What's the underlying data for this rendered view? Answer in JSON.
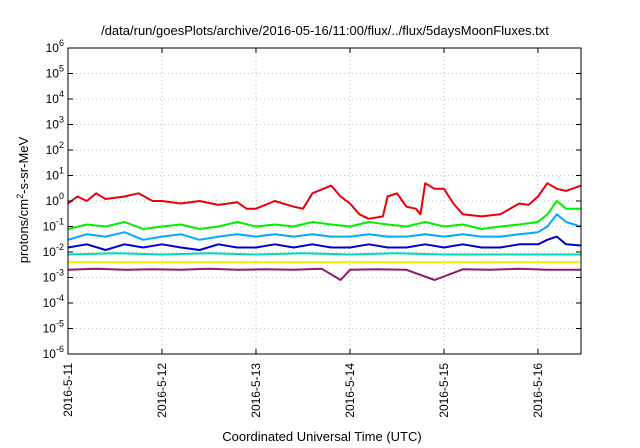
{
  "chart_data": {
    "type": "line",
    "title": "/data/run/goesPlots/archive/2016-05-16/11:00/flux/../flux/5daysMoonFluxes.txt",
    "xlabel": "Coordinated Universal Time (UTC)",
    "ylabel": "protons/cm²-s-sr-MeV",
    "yscale": "log",
    "ylim": [
      1e-06,
      1000000.0
    ],
    "xlim": [
      "2016-05-11",
      "2016-05-16 11:00"
    ],
    "grid": true,
    "legend": "none",
    "y_tick_labels": [
      {
        "base": "10",
        "exp": "-6"
      },
      {
        "base": "10",
        "exp": "-5"
      },
      {
        "base": "10",
        "exp": "-4"
      },
      {
        "base": "10",
        "exp": "-3"
      },
      {
        "base": "10",
        "exp": "-2"
      },
      {
        "base": "10",
        "exp": "-1"
      },
      {
        "base": "10",
        "exp": "0"
      },
      {
        "base": "10",
        "exp": "1"
      },
      {
        "base": "10",
        "exp": "2"
      },
      {
        "base": "10",
        "exp": "3"
      },
      {
        "base": "10",
        "exp": "4"
      },
      {
        "base": "10",
        "exp": "5"
      },
      {
        "base": "10",
        "exp": "6"
      }
    ],
    "x_tick_labels": [
      "2016-5-11",
      "2016-5-12",
      "2016-5-13",
      "2016-5-14",
      "2016-5-15",
      "2016-5-16"
    ],
    "series": [
      {
        "color": "#e8000b",
        "x": [
          0,
          0.1,
          0.2,
          0.3,
          0.4,
          0.6,
          0.75,
          0.9,
          1.0,
          1.2,
          1.4,
          1.6,
          1.8,
          1.9,
          2.0,
          2.2,
          2.4,
          2.5,
          2.6,
          2.8,
          2.9,
          3.0,
          3.1,
          3.2,
          3.35,
          3.4,
          3.5,
          3.6,
          3.7,
          3.75,
          3.8,
          3.9,
          4.0,
          4.1,
          4.2,
          4.4,
          4.6,
          4.8,
          4.9,
          5.0,
          5.1,
          5.2,
          5.3,
          5.458
        ],
        "values": [
          0.8,
          1.5,
          1.0,
          2.0,
          1.2,
          1.5,
          2.0,
          1.0,
          1.0,
          0.8,
          1.0,
          0.7,
          0.9,
          0.5,
          0.5,
          1.0,
          0.6,
          0.5,
          2.0,
          4.0,
          1.5,
          0.8,
          0.3,
          0.2,
          0.25,
          1.5,
          2.0,
          0.6,
          0.5,
          0.3,
          5.0,
          3.0,
          3.0,
          0.8,
          0.3,
          0.25,
          0.3,
          0.8,
          0.7,
          1.5,
          5.0,
          3.0,
          2.5,
          4.0
        ]
      },
      {
        "color": "#00f000",
        "x": [
          0,
          0.2,
          0.4,
          0.6,
          0.8,
          1.0,
          1.2,
          1.4,
          1.6,
          1.8,
          2.0,
          2.2,
          2.4,
          2.6,
          2.8,
          3.0,
          3.2,
          3.4,
          3.6,
          3.8,
          4.0,
          4.2,
          4.4,
          4.6,
          4.8,
          5.0,
          5.1,
          5.2,
          5.3,
          5.458
        ],
        "values": [
          0.08,
          0.12,
          0.1,
          0.15,
          0.08,
          0.1,
          0.12,
          0.08,
          0.1,
          0.15,
          0.1,
          0.12,
          0.1,
          0.15,
          0.12,
          0.1,
          0.15,
          0.12,
          0.1,
          0.15,
          0.1,
          0.12,
          0.08,
          0.1,
          0.12,
          0.15,
          0.3,
          1.0,
          0.5,
          0.5
        ]
      },
      {
        "color": "#00aaff",
        "x": [
          0,
          0.2,
          0.4,
          0.6,
          0.8,
          1.0,
          1.2,
          1.4,
          1.6,
          1.8,
          2.0,
          2.2,
          2.4,
          2.6,
          2.8,
          3.0,
          3.2,
          3.4,
          3.6,
          3.8,
          4.0,
          4.2,
          4.4,
          4.6,
          4.8,
          5.0,
          5.1,
          5.2,
          5.3,
          5.458
        ],
        "values": [
          0.03,
          0.05,
          0.04,
          0.06,
          0.03,
          0.04,
          0.05,
          0.03,
          0.04,
          0.05,
          0.04,
          0.05,
          0.04,
          0.05,
          0.04,
          0.04,
          0.05,
          0.04,
          0.04,
          0.05,
          0.04,
          0.05,
          0.04,
          0.04,
          0.05,
          0.06,
          0.1,
          0.3,
          0.15,
          0.1
        ]
      },
      {
        "color": "#0000cc",
        "x": [
          0,
          0.2,
          0.4,
          0.6,
          0.8,
          1.0,
          1.2,
          1.4,
          1.6,
          1.8,
          2.0,
          2.2,
          2.4,
          2.6,
          2.8,
          3.0,
          3.2,
          3.4,
          3.6,
          3.8,
          4.0,
          4.2,
          4.4,
          4.6,
          4.8,
          5.0,
          5.1,
          5.2,
          5.3,
          5.458
        ],
        "values": [
          0.015,
          0.02,
          0.012,
          0.02,
          0.015,
          0.02,
          0.015,
          0.012,
          0.02,
          0.015,
          0.015,
          0.02,
          0.015,
          0.02,
          0.015,
          0.015,
          0.02,
          0.015,
          0.015,
          0.02,
          0.015,
          0.02,
          0.015,
          0.015,
          0.02,
          0.02,
          0.03,
          0.04,
          0.02,
          0.018
        ]
      },
      {
        "color": "#00d8b8",
        "x": [
          0,
          0.5,
          1.0,
          1.5,
          2.0,
          2.5,
          3.0,
          3.5,
          4.0,
          4.5,
          5.0,
          5.458
        ],
        "values": [
          0.008,
          0.009,
          0.008,
          0.009,
          0.008,
          0.009,
          0.008,
          0.009,
          0.008,
          0.008,
          0.008,
          0.008
        ]
      },
      {
        "color": "#f2f200",
        "x": [
          0,
          1.0,
          2.0,
          3.0,
          4.0,
          5.0,
          5.458
        ],
        "values": [
          0.004,
          0.004,
          0.004,
          0.004,
          0.004,
          0.004,
          0.004
        ]
      },
      {
        "color": "#8b1a6b",
        "x": [
          0,
          0.3,
          0.6,
          0.9,
          1.2,
          1.5,
          1.8,
          2.1,
          2.4,
          2.7,
          2.9,
          3.0,
          3.3,
          3.6,
          3.9,
          4.2,
          4.5,
          4.8,
          5.1,
          5.458
        ],
        "values": [
          0.002,
          0.0022,
          0.002,
          0.0021,
          0.002,
          0.0022,
          0.002,
          0.0021,
          0.002,
          0.0022,
          0.0008,
          0.002,
          0.0021,
          0.002,
          0.0008,
          0.0021,
          0.002,
          0.0022,
          0.002,
          0.002
        ]
      }
    ]
  }
}
